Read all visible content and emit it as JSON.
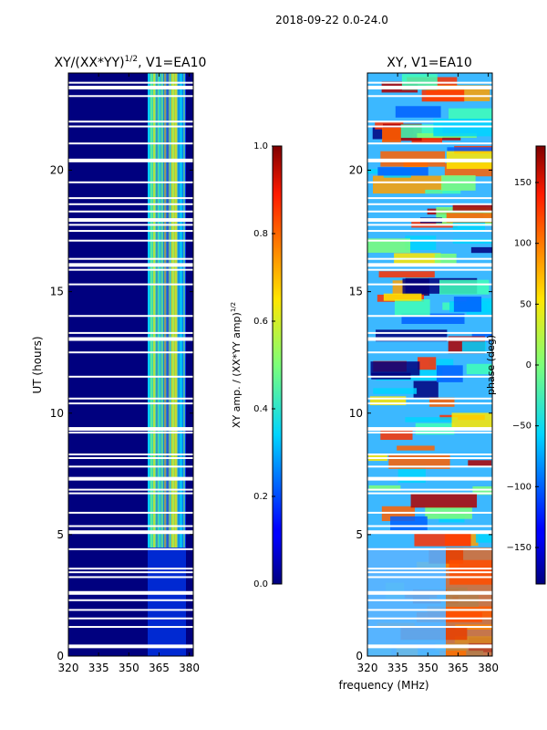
{
  "suptitle": "2018-09-22 0.0-24.0",
  "chart_data": [
    {
      "type": "heatmap",
      "title": "XY/(XX*YY)^{1/2}, V1=EA10",
      "title_main": "XY/(XX*YY)",
      "title_exp": "1/2",
      "title_suffix": ", V1=EA10",
      "xlabel": "",
      "ylabel": "UT (hours)",
      "xlim": [
        320,
        382
      ],
      "ylim": [
        0,
        24
      ],
      "xticks": [
        320,
        335,
        350,
        365,
        380
      ],
      "yticks": [
        0,
        5,
        10,
        15,
        20
      ],
      "band_x": [
        362,
        377
      ],
      "colorbar": {
        "label_main": "XY amp. / (XX*YY amp)",
        "label_exp": "1/2",
        "range": [
          0.0,
          1.0
        ],
        "ticks": [
          "0.0",
          "0.2",
          "0.4",
          "0.6",
          "0.8",
          "1.0"
        ],
        "tick_values": [
          0.0,
          0.2,
          0.4,
          0.6,
          0.8,
          1.0
        ]
      }
    },
    {
      "type": "heatmap",
      "title": "XY, V1=EA10",
      "xlabel": "frequency (MHz)",
      "ylabel": "",
      "xlim": [
        320,
        382
      ],
      "ylim": [
        0,
        24
      ],
      "xticks": [
        320,
        335,
        350,
        365,
        380
      ],
      "yticks": [
        0,
        5,
        10,
        15,
        20
      ],
      "colorbar": {
        "label": "phase (deg)",
        "range": [
          -180,
          180
        ],
        "ticks": [
          "150",
          "100",
          "50",
          "0",
          "−50",
          "−100",
          "−150"
        ],
        "tick_values": [
          150,
          100,
          50,
          0,
          -50,
          -100,
          -150
        ]
      }
    }
  ],
  "flag_rows_ut": [
    0.4,
    1.2,
    1.55,
    1.9,
    2.3,
    2.6,
    3.25,
    3.45,
    3.6,
    4.4,
    5.1,
    5.35,
    5.9,
    6.7,
    6.85,
    7.3,
    7.8,
    8.15,
    8.3,
    9.2,
    9.35,
    10.4,
    10.6,
    11.5,
    12.5,
    13.05,
    13.3,
    14.0,
    15.3,
    15.9,
    16.1,
    16.35,
    17.1,
    17.5,
    17.75,
    17.95,
    18.3,
    18.6,
    18.85,
    19.5,
    20.4,
    21.1,
    21.8,
    22.0,
    23.05,
    23.4,
    23.6
  ]
}
